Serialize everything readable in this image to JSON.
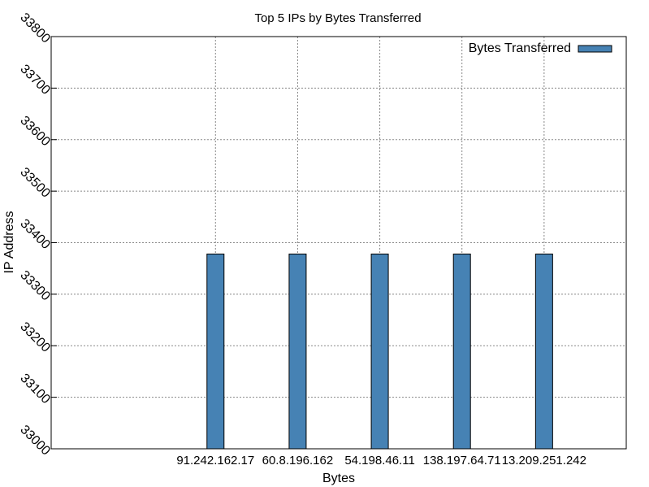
{
  "chart_data": {
    "type": "bar",
    "title": "Top 5 IPs by Bytes Transferred",
    "xlabel": "Bytes",
    "ylabel": "IP Address",
    "categories": [
      "91.242.162.17",
      "60.8.196.162",
      "54.198.46.11",
      "138.197.64.71",
      "13.209.251.242"
    ],
    "series": [
      {
        "name": "Bytes Transferred",
        "values": [
          33378,
          33378,
          33378,
          33378,
          33378
        ],
        "color": "#4682b4"
      }
    ],
    "ylim": [
      33000,
      33800
    ],
    "yticks": [
      33000,
      33100,
      33200,
      33300,
      33400,
      33500,
      33600,
      33700,
      33800
    ],
    "grid": true,
    "legend_position": "top-right"
  }
}
